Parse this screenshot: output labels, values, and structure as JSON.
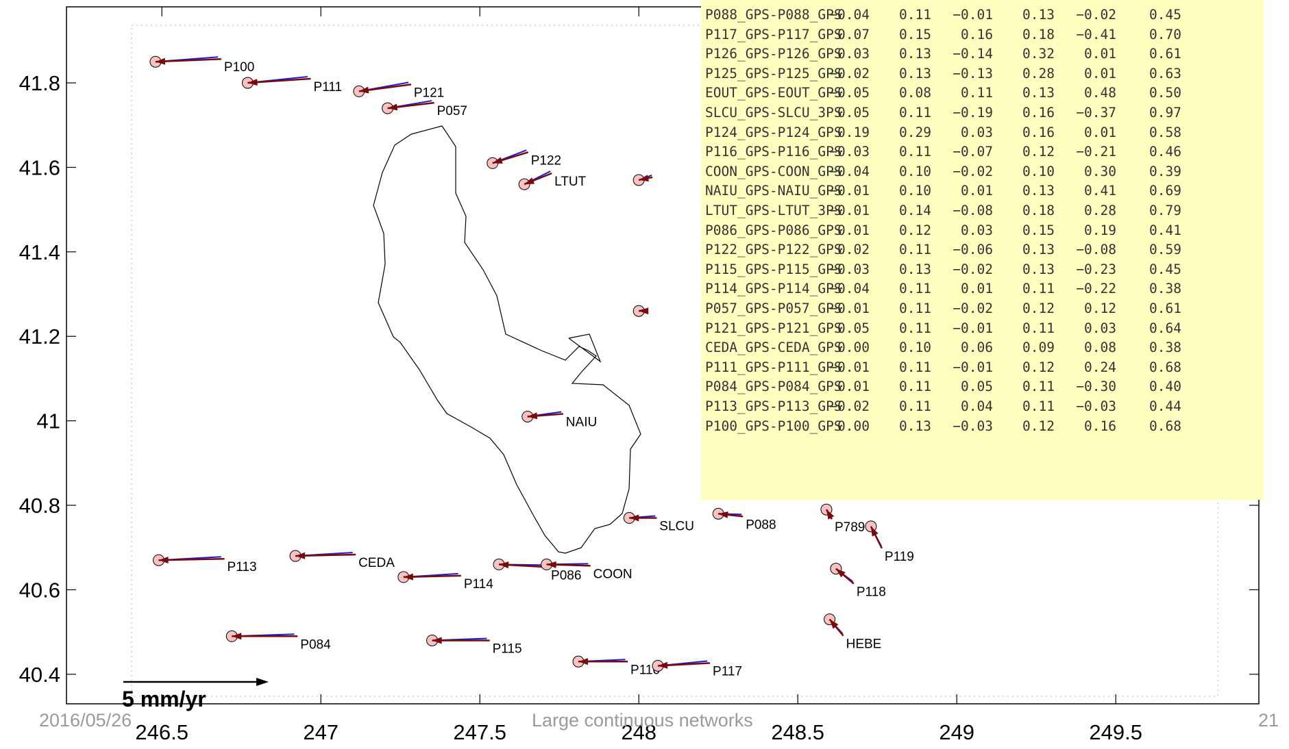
{
  "chart_data": {
    "type": "vector-map",
    "xlim": [
      246.2,
      249.95
    ],
    "ylim": [
      40.33,
      41.98
    ],
    "x_ticks": [
      "246.5",
      "247",
      "247.5",
      "248",
      "248.5",
      "249",
      "249.5"
    ],
    "x_tick_values": [
      246.5,
      247,
      247.5,
      248,
      248.5,
      249,
      249.5
    ],
    "y_ticks": [
      "40.4",
      "40.6",
      "40.8",
      "41",
      "41.2",
      "41.4",
      "41.6",
      "41.8"
    ],
    "y_tick_values": [
      40.4,
      40.6,
      40.8,
      41.0,
      41.2,
      41.4,
      41.6,
      41.8
    ],
    "scale_arrow": {
      "label": "5 mm/yr",
      "value_mm_yr": 5
    },
    "colors": {
      "estimated_vector": "#7a0a0a",
      "model_vector": "#1a1ad8",
      "ellipse_fill": "#f6c2c2",
      "panel_background": "#ffffc0",
      "border": "#000000"
    },
    "stations": [
      {
        "name": "P100",
        "lon": 246.48,
        "lat": 41.85,
        "ve": 2.4,
        "vn": 0.1
      },
      {
        "name": "P111",
        "lon": 246.77,
        "lat": 41.8,
        "ve": 2.3,
        "vn": 0.15
      },
      {
        "name": "P121",
        "lon": 247.12,
        "lat": 41.78,
        "ve": 1.9,
        "vn": 0.25
      },
      {
        "name": "P057",
        "lon": 247.21,
        "lat": 41.74,
        "ve": 1.7,
        "vn": 0.2
      },
      {
        "name": "P122",
        "lon": 247.54,
        "lat": 41.61,
        "ve": 1.3,
        "vn": 0.4
      },
      {
        "name": "LTUT",
        "lon": 247.64,
        "lat": 41.56,
        "ve": 1.0,
        "vn": 0.4
      },
      {
        "name": "NAIU",
        "lon": 247.65,
        "lat": 41.01,
        "ve": 1.3,
        "vn": 0.1
      },
      {
        "name": "SLCU",
        "lon": 247.97,
        "lat": 40.77,
        "ve": 1.0,
        "vn": 0.0
      },
      {
        "name": "P088",
        "lon": 248.25,
        "lat": 40.78,
        "ve": 0.9,
        "vn": -0.1
      },
      {
        "name": "P789",
        "lon": 248.59,
        "lat": 40.79,
        "ve": 0.2,
        "vn": -0.35
      },
      {
        "name": "P119",
        "lon": 248.73,
        "lat": 40.75,
        "ve": 0.4,
        "vn": -0.8
      },
      {
        "name": "P118",
        "lon": 248.62,
        "lat": 40.65,
        "ve": 0.65,
        "vn": -0.55
      },
      {
        "name": "HEBE",
        "lon": 248.6,
        "lat": 40.53,
        "ve": 0.5,
        "vn": -0.6
      },
      {
        "name": "P113",
        "lon": 246.49,
        "lat": 40.67,
        "ve": 2.4,
        "vn": 0.05
      },
      {
        "name": "CEDA",
        "lon": 246.92,
        "lat": 40.68,
        "ve": 2.2,
        "vn": 0.05
      },
      {
        "name": "P114",
        "lon": 247.26,
        "lat": 40.63,
        "ve": 2.1,
        "vn": 0.05
      },
      {
        "name": "P086",
        "lon": 247.56,
        "lat": 40.66,
        "ve": 1.8,
        "vn": -0.1
      },
      {
        "name": "COON",
        "lon": 247.71,
        "lat": 40.66,
        "ve": 1.6,
        "vn": -0.05
      },
      {
        "name": "P084",
        "lon": 246.72,
        "lat": 40.49,
        "ve": 2.4,
        "vn": 0.0
      },
      {
        "name": "P115",
        "lon": 247.35,
        "lat": 40.48,
        "ve": 2.1,
        "vn": 0.0
      },
      {
        "name": "P116",
        "lon": 247.81,
        "lat": 40.43,
        "ve": 1.8,
        "vn": 0.0
      },
      {
        "name": "P117",
        "lon": 248.06,
        "lat": 40.42,
        "ve": 1.9,
        "vn": 0.1
      },
      {
        "name": "",
        "lon": 248.0,
        "lat": 41.57,
        "ve": 0.5,
        "vn": 0.1
      },
      {
        "name": "",
        "lon": 248.0,
        "lat": 41.26,
        "ve": 0.3,
        "vn": 0.0
      }
    ]
  },
  "residual_table": {
    "rows": [
      {
        "site": "P088_GPS-P088_GPS",
        "v": [
          "−0.04",
          "0.11",
          "−0.01",
          "0.13",
          "−0.02",
          "0.45"
        ]
      },
      {
        "site": "P117_GPS-P117_GPS",
        "v": [
          "0.07",
          "0.15",
          "0.16",
          "0.18",
          "−0.41",
          "0.70"
        ]
      },
      {
        "site": "P126_GPS-P126_GPS",
        "v": [
          "0.03",
          "0.13",
          "−0.14",
          "0.32",
          "0.01",
          "0.61"
        ]
      },
      {
        "site": "P125_GPS-P125_GPS",
        "v": [
          "−0.02",
          "0.13",
          "−0.13",
          "0.28",
          "0.01",
          "0.63"
        ]
      },
      {
        "site": "EOUT_GPS-EOUT_GPS",
        "v": [
          "−0.05",
          "0.08",
          "0.11",
          "0.13",
          "0.48",
          "0.50"
        ]
      },
      {
        "site": "SLCU_GPS-SLCU_3PS",
        "v": [
          "0.05",
          "0.11",
          "−0.19",
          "0.16",
          "−0.37",
          "0.97"
        ]
      },
      {
        "site": "P124_GPS-P124_GPS",
        "v": [
          "0.19",
          "0.29",
          "0.03",
          "0.16",
          "0.01",
          "0.58"
        ]
      },
      {
        "site": "P116_GPS-P116_GPS",
        "v": [
          "−0.03",
          "0.11",
          "−0.07",
          "0.12",
          "−0.21",
          "0.46"
        ]
      },
      {
        "site": "COON_GPS-COON_GPS",
        "v": [
          "−0.04",
          "0.10",
          "−0.02",
          "0.10",
          "0.30",
          "0.39"
        ]
      },
      {
        "site": "NAIU_GPS-NAIU_GPS",
        "v": [
          "−0.01",
          "0.10",
          "0.01",
          "0.13",
          "0.41",
          "0.69"
        ]
      },
      {
        "site": "LTUT_GPS-LTUT_3PS",
        "v": [
          "−0.01",
          "0.14",
          "−0.08",
          "0.18",
          "0.28",
          "0.79"
        ]
      },
      {
        "site": "P086_GPS-P086_GPS",
        "v": [
          "0.01",
          "0.12",
          "0.03",
          "0.15",
          "0.19",
          "0.41"
        ]
      },
      {
        "site": "P122_GPS-P122_GPS",
        "v": [
          "0.02",
          "0.11",
          "−0.06",
          "0.13",
          "−0.08",
          "0.59"
        ]
      },
      {
        "site": "P115_GPS-P115_GPS",
        "v": [
          "−0.03",
          "0.13",
          "−0.02",
          "0.13",
          "−0.23",
          "0.45"
        ]
      },
      {
        "site": "P114_GPS-P114_GPS",
        "v": [
          "−0.04",
          "0.11",
          "0.01",
          "0.11",
          "−0.22",
          "0.38"
        ]
      },
      {
        "site": "P057_GPS-P057_GPS",
        "v": [
          "−0.01",
          "0.11",
          "−0.02",
          "0.12",
          "0.12",
          "0.61"
        ]
      },
      {
        "site": "P121_GPS-P121_GPS",
        "v": [
          "0.05",
          "0.11",
          "−0.01",
          "0.11",
          "0.03",
          "0.64"
        ]
      },
      {
        "site": "CEDA_GPS-CEDA_GPS",
        "v": [
          "0.00",
          "0.10",
          "0.06",
          "0.09",
          "0.08",
          "0.38"
        ]
      },
      {
        "site": "P111_GPS-P111_GPS",
        "v": [
          "−0.01",
          "0.11",
          "−0.01",
          "0.12",
          "0.24",
          "0.68"
        ]
      },
      {
        "site": "P084_GPS-P084_GPS",
        "v": [
          "0.01",
          "0.11",
          "0.05",
          "0.11",
          "−0.30",
          "0.40"
        ]
      },
      {
        "site": "P113_GPS-P113_GPS",
        "v": [
          "−0.02",
          "0.11",
          "0.04",
          "0.11",
          "−0.03",
          "0.44"
        ]
      },
      {
        "site": "P100_GPS-P100_GPS",
        "v": [
          "0.00",
          "0.13",
          "−0.03",
          "0.12",
          "0.16",
          "0.68"
        ]
      }
    ]
  },
  "footer": {
    "date": "2016/05/26",
    "title": "Large continuous networks",
    "page_number": "21"
  }
}
